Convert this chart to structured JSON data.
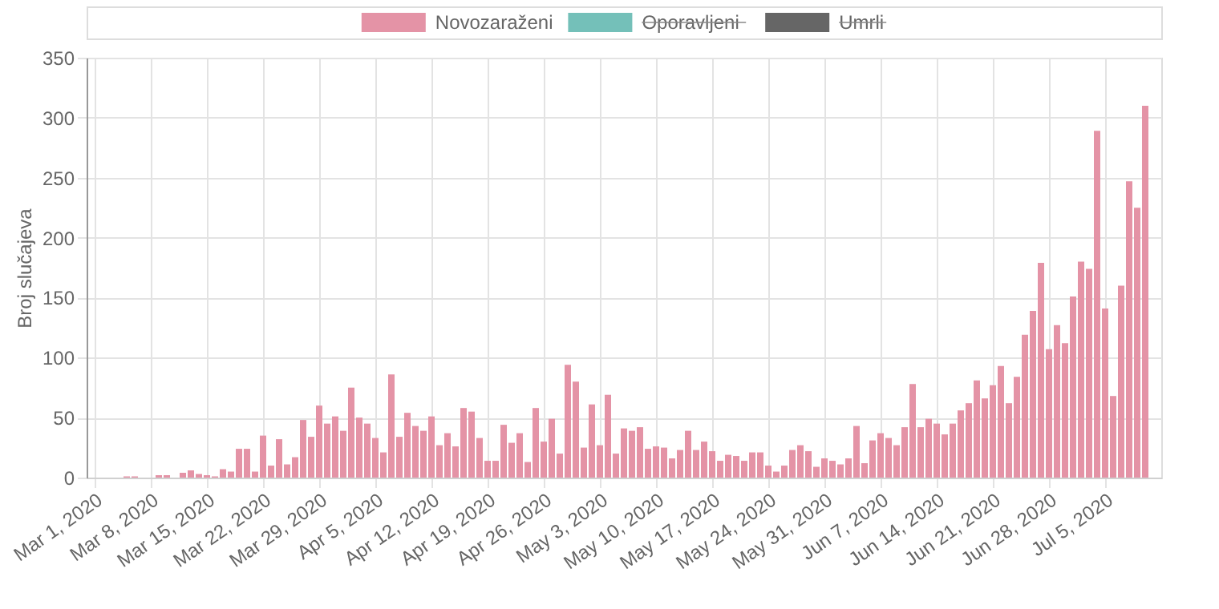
{
  "chart_data": {
    "type": "bar",
    "ylabel": "Broj slučajeva",
    "legend": "top",
    "grid": true,
    "x": [
      "2020-03-05",
      "2020-03-06",
      "2020-03-07",
      "2020-03-08",
      "2020-03-09",
      "2020-03-10",
      "2020-03-11",
      "2020-03-12",
      "2020-03-13",
      "2020-03-14",
      "2020-03-15",
      "2020-03-16",
      "2020-03-17",
      "2020-03-18",
      "2020-03-19",
      "2020-03-20",
      "2020-03-21",
      "2020-03-22",
      "2020-03-23",
      "2020-03-24",
      "2020-03-25",
      "2020-03-26",
      "2020-03-27",
      "2020-03-28",
      "2020-03-29",
      "2020-03-30",
      "2020-03-31",
      "2020-04-01",
      "2020-04-02",
      "2020-04-03",
      "2020-04-04",
      "2020-04-05",
      "2020-04-06",
      "2020-04-07",
      "2020-04-08",
      "2020-04-09",
      "2020-04-10",
      "2020-04-11",
      "2020-04-12",
      "2020-04-13",
      "2020-04-14",
      "2020-04-15",
      "2020-04-16",
      "2020-04-17",
      "2020-04-18",
      "2020-04-19",
      "2020-04-20",
      "2020-04-21",
      "2020-04-22",
      "2020-04-23",
      "2020-04-24",
      "2020-04-25",
      "2020-04-26",
      "2020-04-27",
      "2020-04-28",
      "2020-04-29",
      "2020-04-30",
      "2020-05-01",
      "2020-05-02",
      "2020-05-03",
      "2020-05-04",
      "2020-05-05",
      "2020-05-06",
      "2020-05-07",
      "2020-05-08",
      "2020-05-09",
      "2020-05-10",
      "2020-05-11",
      "2020-05-12",
      "2020-05-13",
      "2020-05-14",
      "2020-05-15",
      "2020-05-16",
      "2020-05-17",
      "2020-05-18",
      "2020-05-19",
      "2020-05-20",
      "2020-05-21",
      "2020-05-22",
      "2020-05-23",
      "2020-05-24",
      "2020-05-25",
      "2020-05-26",
      "2020-05-27",
      "2020-05-28",
      "2020-05-29",
      "2020-05-30",
      "2020-05-31",
      "2020-06-01",
      "2020-06-02",
      "2020-06-03",
      "2020-06-04",
      "2020-06-05",
      "2020-06-06",
      "2020-06-07",
      "2020-06-08",
      "2020-06-09",
      "2020-06-10",
      "2020-06-11",
      "2020-06-12",
      "2020-06-13",
      "2020-06-14",
      "2020-06-15",
      "2020-06-16",
      "2020-06-17",
      "2020-06-18",
      "2020-06-19",
      "2020-06-20",
      "2020-06-21",
      "2020-06-22",
      "2020-06-23",
      "2020-06-24",
      "2020-06-25",
      "2020-06-26",
      "2020-06-27",
      "2020-06-28",
      "2020-06-29",
      "2020-06-30",
      "2020-07-01",
      "2020-07-02",
      "2020-07-03",
      "2020-07-04",
      "2020-07-05",
      "2020-07-06",
      "2020-07-07",
      "2020-07-08",
      "2020-07-09",
      "2020-07-10"
    ],
    "series": [
      {
        "name": "Novozaraženi",
        "color": "#e493a6",
        "values": [
          1,
          1,
          0,
          0,
          2,
          2,
          0,
          4,
          6,
          3,
          2,
          1,
          7,
          5,
          24,
          24,
          5,
          35,
          10,
          32,
          11,
          17,
          48,
          34,
          60,
          45,
          51,
          39,
          75,
          50,
          45,
          33,
          21,
          86,
          34,
          54,
          43,
          39,
          51,
          27,
          37,
          26,
          58,
          55,
          33,
          14,
          14,
          44,
          29,
          37,
          13,
          58,
          30,
          49,
          20,
          94,
          80,
          25,
          61,
          27,
          69,
          20,
          41,
          39,
          42,
          24,
          26,
          25,
          16,
          23,
          39,
          23,
          30,
          22,
          14,
          19,
          18,
          14,
          21,
          21,
          10,
          5,
          10,
          23,
          27,
          22,
          9,
          16,
          14,
          11,
          16,
          43,
          12,
          31,
          37,
          33,
          27,
          42,
          78,
          42,
          49,
          45,
          36,
          45,
          56,
          62,
          81,
          66,
          77,
          93,
          62,
          84,
          119,
          139,
          179,
          107,
          127,
          112,
          151,
          180,
          174,
          289,
          141,
          68,
          160,
          247,
          225,
          310
        ]
      },
      {
        "name": "Oporavljeni",
        "color": "#74c0b9",
        "values": [
          null,
          null,
          null,
          null,
          null,
          null,
          null,
          null,
          null,
          null,
          null,
          null,
          null,
          null,
          null,
          null,
          null,
          null,
          null,
          null,
          null,
          null,
          null,
          null,
          null,
          null,
          null,
          null,
          null,
          null,
          null,
          null,
          null,
          null,
          null,
          null,
          null,
          null,
          null,
          null,
          null,
          null,
          null,
          null,
          null,
          null,
          null,
          null,
          null,
          null,
          null,
          null,
          null,
          null,
          null,
          null,
          null,
          null,
          null,
          null,
          null,
          null,
          null,
          null,
          null,
          null,
          null,
          null,
          null,
          null,
          null,
          null,
          null,
          null,
          null,
          null,
          null,
          null,
          null,
          null,
          null,
          null,
          null,
          null,
          null,
          null,
          null,
          null,
          null,
          null,
          null,
          null,
          null,
          null,
          null,
          null,
          null,
          null,
          null,
          null,
          null,
          null,
          null,
          null,
          null,
          null,
          null,
          null,
          null,
          null,
          null,
          null,
          null,
          null,
          null,
          null,
          null,
          null,
          null,
          null,
          null,
          null,
          null,
          null,
          null,
          null,
          null,
          null
        ]
      },
      {
        "name": "Umrli",
        "color": "#666666",
        "values": [
          null,
          null,
          null,
          null,
          null,
          null,
          null,
          null,
          null,
          null,
          null,
          null,
          null,
          null,
          null,
          null,
          null,
          null,
          null,
          null,
          null,
          null,
          null,
          null,
          null,
          null,
          null,
          null,
          null,
          null,
          null,
          null,
          null,
          null,
          null,
          null,
          null,
          null,
          null,
          null,
          null,
          null,
          null,
          null,
          null,
          null,
          null,
          null,
          null,
          null,
          null,
          null,
          null,
          null,
          null,
          null,
          null,
          null,
          null,
          null,
          null,
          null,
          null,
          null,
          null,
          null,
          null,
          null,
          null,
          null,
          null,
          null,
          null,
          null,
          null,
          null,
          null,
          null,
          null,
          null,
          null,
          null,
          null,
          null,
          null,
          null,
          null,
          null,
          null,
          null,
          null,
          null,
          null,
          null,
          null,
          null,
          null,
          null,
          null,
          null,
          null,
          null,
          null,
          null,
          null,
          null,
          null,
          null,
          null,
          null,
          null,
          null,
          null,
          null,
          null,
          null,
          null,
          null,
          null,
          null,
          null,
          null,
          null,
          null,
          null,
          null,
          null,
          null
        ]
      }
    ],
    "xlim": [
      "2020-03-01",
      "2020-07-11"
    ],
    "xticks": [
      {
        "value": "2020-03-01",
        "label": "Mar 1, 2020"
      },
      {
        "value": "2020-03-08",
        "label": "Mar 8, 2020"
      },
      {
        "value": "2020-03-15",
        "label": "Mar 15, 2020"
      },
      {
        "value": "2020-03-22",
        "label": "Mar 22, 2020"
      },
      {
        "value": "2020-03-29",
        "label": "Mar 29, 2020"
      },
      {
        "value": "2020-04-05",
        "label": "Apr 5, 2020"
      },
      {
        "value": "2020-04-12",
        "label": "Apr 12, 2020"
      },
      {
        "value": "2020-04-19",
        "label": "Apr 19, 2020"
      },
      {
        "value": "2020-04-26",
        "label": "Apr 26, 2020"
      },
      {
        "value": "2020-05-03",
        "label": "May 3, 2020"
      },
      {
        "value": "2020-05-10",
        "label": "May 10, 2020"
      },
      {
        "value": "2020-05-17",
        "label": "May 17, 2020"
      },
      {
        "value": "2020-05-24",
        "label": "May 24, 2020"
      },
      {
        "value": "2020-05-31",
        "label": "May 31, 2020"
      },
      {
        "value": "2020-06-07",
        "label": "Jun 7, 2020"
      },
      {
        "value": "2020-06-14",
        "label": "Jun 14, 2020"
      },
      {
        "value": "2020-06-21",
        "label": "Jun 21, 2020"
      },
      {
        "value": "2020-06-28",
        "label": "Jun 28, 2020"
      },
      {
        "value": "2020-07-05",
        "label": "Jul 5, 2020"
      }
    ],
    "ylim": [
      0,
      350
    ],
    "yticks": [
      0,
      50,
      100,
      150,
      200,
      250,
      300,
      350
    ]
  }
}
